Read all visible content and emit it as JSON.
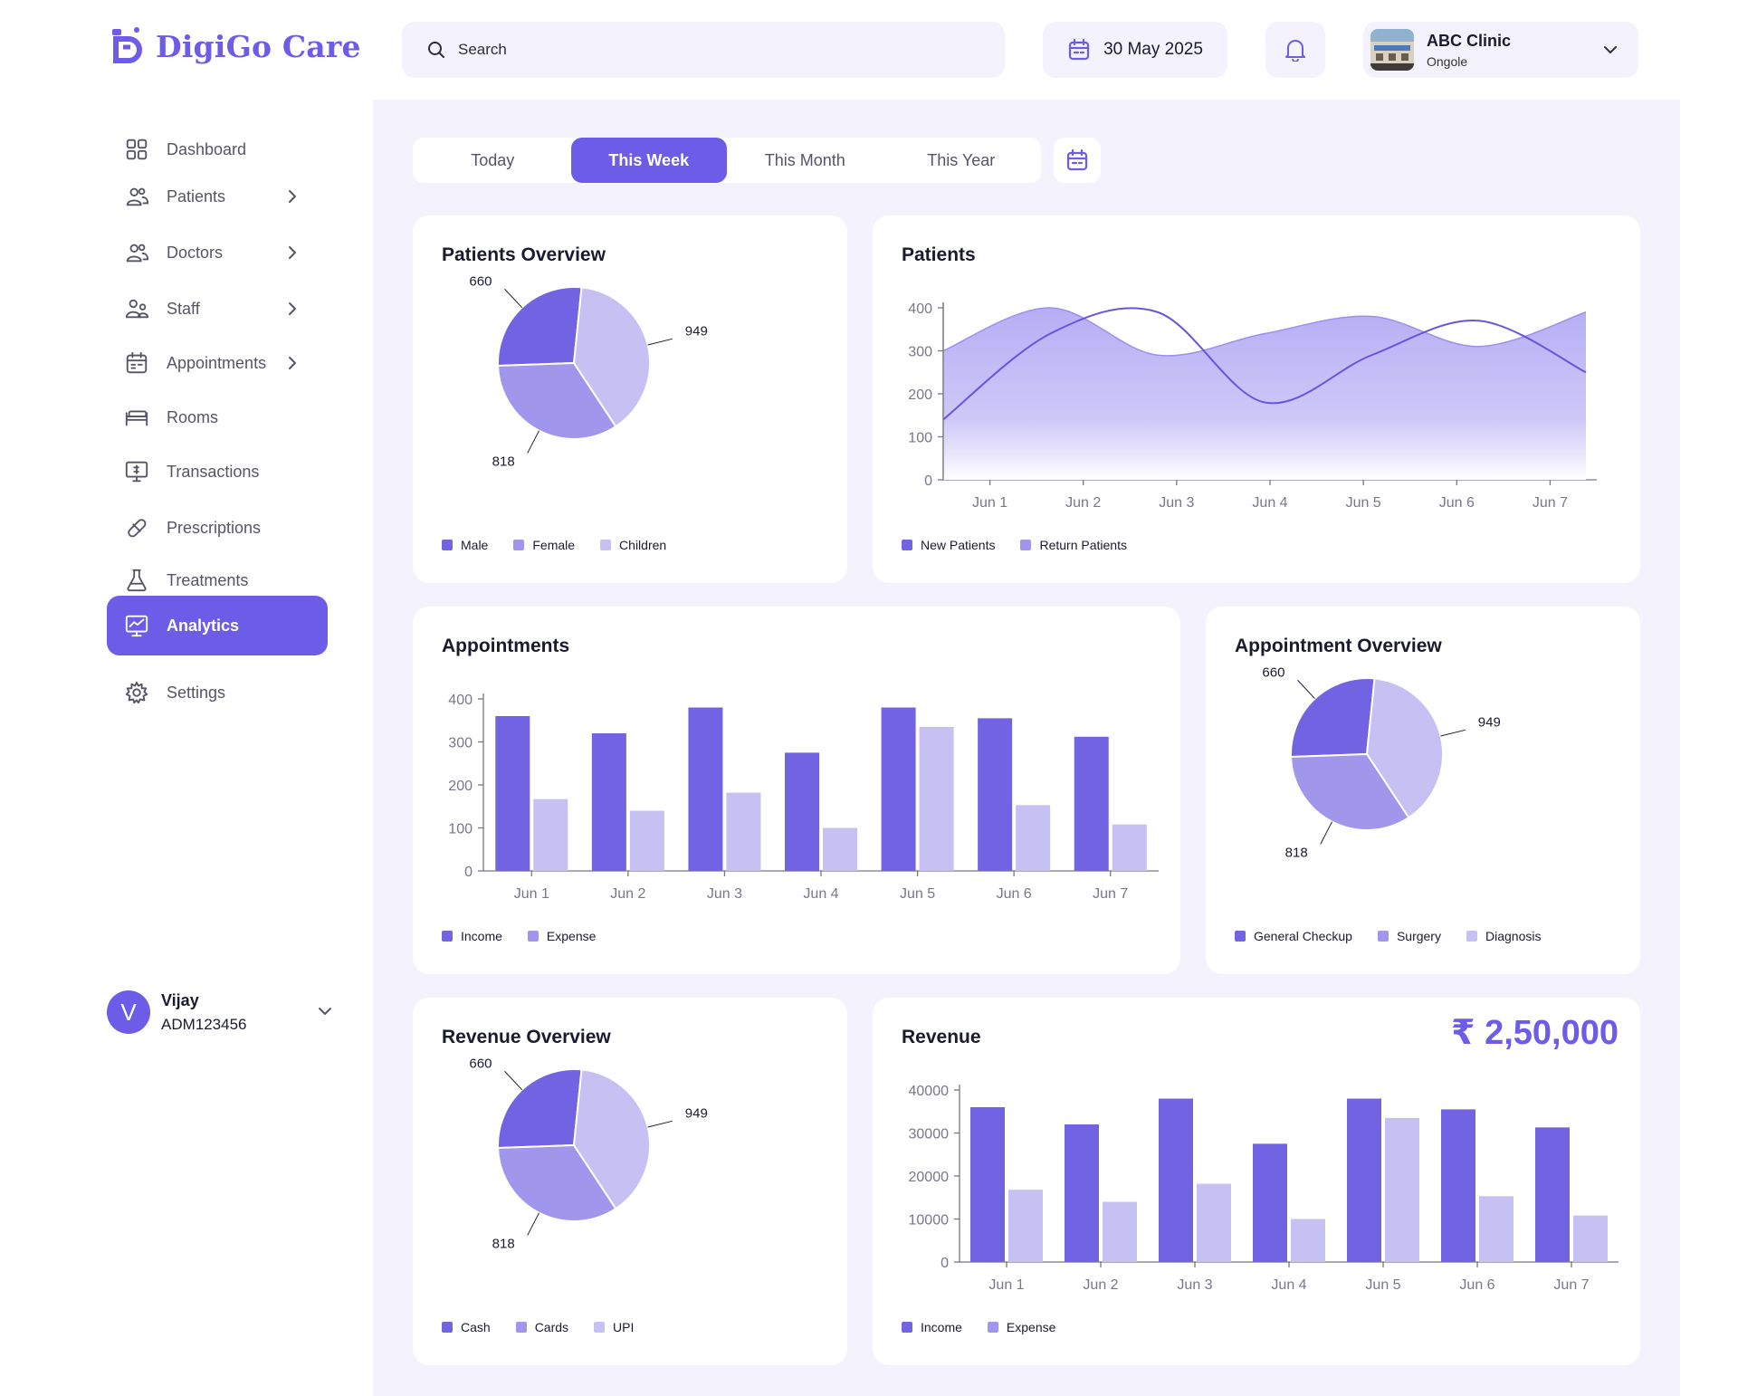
{
  "header": {
    "logo_text": "DigiGo Care",
    "search_placeholder": "Search",
    "date": "30 May 2025",
    "clinic_name": "ABC Clinic",
    "clinic_location": "Ongole"
  },
  "sidebar": {
    "items": [
      {
        "label": "Dashboard",
        "icon": "grid-icon",
        "chevron": false
      },
      {
        "label": "Patients",
        "icon": "users-icon",
        "chevron": true
      },
      {
        "label": "Doctors",
        "icon": "users-icon",
        "chevron": true
      },
      {
        "label": "Staff",
        "icon": "staff-icon",
        "chevron": true
      },
      {
        "label": "Appointments",
        "icon": "calendar-icon",
        "chevron": true
      },
      {
        "label": "Rooms",
        "icon": "bed-icon",
        "chevron": false
      },
      {
        "label": "Transactions",
        "icon": "monitor-dollar-icon",
        "chevron": false
      },
      {
        "label": "Prescriptions",
        "icon": "pill-icon",
        "chevron": false
      },
      {
        "label": "Treatments",
        "icon": "flask-icon",
        "chevron": false
      },
      {
        "label": "Analytics",
        "icon": "chart-monitor-icon",
        "chevron": false,
        "active": true
      },
      {
        "label": "Settings",
        "icon": "gear-icon",
        "chevron": false
      }
    ],
    "user": {
      "initial": "V",
      "name": "Vijay",
      "id": "ADM123456"
    }
  },
  "period_tabs": {
    "items": [
      "Today",
      "This Week",
      "This Month",
      "This Year"
    ],
    "active": "This Week"
  },
  "colors": {
    "accent": "#6c5ce7",
    "series_dark": "#7263e3",
    "series_mid": "#a096eb",
    "series_light": "#c6c0f3",
    "background": "#f3f2fd"
  },
  "cards": {
    "patients_overview": {
      "title": "Patients Overview",
      "chart_data": {
        "type": "pie",
        "slices": [
          {
            "label": "Male",
            "value": 660
          },
          {
            "label": "Female",
            "value": 818
          },
          {
            "label": "Children",
            "value": 949
          }
        ]
      }
    },
    "patients": {
      "title": "Patients",
      "chart_data": {
        "type": "area",
        "x": [
          "Jun 1",
          "Jun 2",
          "Jun 3",
          "Jun 4",
          "Jun 5",
          "Jun 6",
          "Jun 7"
        ],
        "ylim": [
          0,
          400
        ],
        "yticks": [
          0,
          100,
          200,
          300,
          400
        ],
        "series": [
          {
            "name": "New Patients",
            "values": [
              140,
              340,
              390,
              180,
              290,
              370,
              250
            ]
          },
          {
            "name": "Return Patients",
            "values": [
              300,
              400,
              290,
              340,
              380,
              310,
              390
            ]
          }
        ]
      }
    },
    "appointments": {
      "title": "Appointments",
      "chart_data": {
        "type": "bar",
        "categories": [
          "Jun 1",
          "Jun 2",
          "Jun 3",
          "Jun 4",
          "Jun 5",
          "Jun 6",
          "Jun 7"
        ],
        "ylim": [
          0,
          400
        ],
        "yticks": [
          0,
          100,
          200,
          300,
          400
        ],
        "series": [
          {
            "name": "Income",
            "values": [
              360,
              320,
              380,
              275,
              380,
              355,
              312
            ]
          },
          {
            "name": "Expense",
            "values": [
              167,
              140,
              182,
              100,
              335,
              153,
              108
            ]
          }
        ]
      }
    },
    "appointment_overview": {
      "title": "Appointment Overview",
      "chart_data": {
        "type": "pie",
        "slices": [
          {
            "label": "General Checkup",
            "value": 660
          },
          {
            "label": "Surgery",
            "value": 818
          },
          {
            "label": "Diagnosis",
            "value": 949
          }
        ]
      }
    },
    "revenue_overview": {
      "title": "Revenue Overview",
      "chart_data": {
        "type": "pie",
        "slices": [
          {
            "label": "Cash",
            "value": 660
          },
          {
            "label": "Cards",
            "value": 818
          },
          {
            "label": "UPI",
            "value": 949
          }
        ]
      }
    },
    "revenue": {
      "title": "Revenue",
      "total": "₹ 2,50,000",
      "chart_data": {
        "type": "bar",
        "categories": [
          "Jun 1",
          "Jun 2",
          "Jun 3",
          "Jun 4",
          "Jun 5",
          "Jun 6",
          "Jun 7"
        ],
        "ylim": [
          0,
          40000
        ],
        "yticks": [
          0,
          10000,
          20000,
          30000,
          40000
        ],
        "series": [
          {
            "name": "Income",
            "values": [
              36000,
              32000,
              38000,
              27500,
              38000,
              35500,
              31300
            ]
          },
          {
            "name": "Expense",
            "values": [
              16800,
              14000,
              18200,
              10000,
              33500,
              15300,
              10800
            ]
          }
        ]
      }
    }
  }
}
